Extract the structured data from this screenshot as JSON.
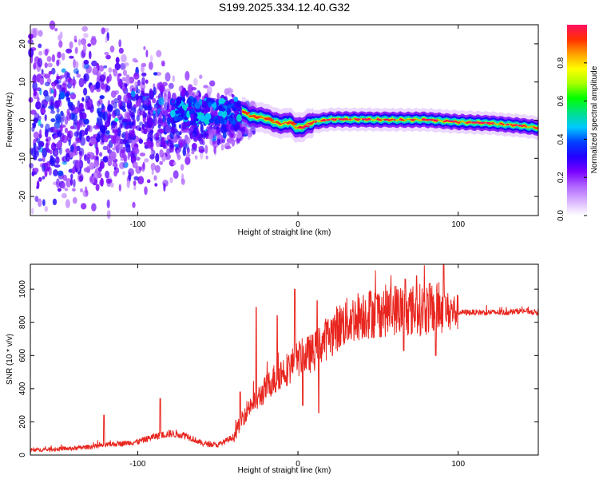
{
  "title": "S199.2025.334.12.40.G32",
  "chart_data": [
    {
      "type": "heatmap",
      "xlabel": "Height of straight line (km)",
      "ylabel": "Frequency (Hz)",
      "xlim": [
        -167,
        150
      ],
      "ylim": [
        -25,
        25
      ],
      "xticks": [
        -100,
        0,
        100
      ],
      "yticks": [
        -20,
        -10,
        0,
        10,
        20
      ],
      "xtick_labels": [
        "-100",
        "0",
        "100"
      ],
      "ytick_labels": [
        "-20",
        "-10",
        "0",
        "10",
        "20"
      ],
      "colorbar": {
        "label": "Normalized spectral amplitude",
        "range": [
          0,
          1
        ],
        "ticks": [
          0.0,
          0.2,
          0.4,
          0.6,
          0.8
        ],
        "tick_labels": [
          "0.0",
          "0.2",
          "0.4",
          "0.6",
          "0.8"
        ],
        "colors": [
          "#ffffff",
          "#d9b3ff",
          "#b066ff",
          "#7a00ff",
          "#2400ff",
          "#0040ff",
          "#00c8ff",
          "#00e08a",
          "#00ff00",
          "#a8ff00",
          "#ffff00",
          "#ffa000",
          "#ff3000",
          "#ff1060"
        ]
      },
      "trace_center_hz": [
        [
          -35,
          2.5
        ],
        [
          -30,
          1.0
        ],
        [
          -25,
          0.8
        ],
        [
          -20,
          0.5
        ],
        [
          -15,
          -0.5
        ],
        [
          -10,
          -1.0
        ],
        [
          -5,
          -0.5
        ],
        [
          -2,
          -1.8
        ],
        [
          2,
          -2.0
        ],
        [
          6,
          -1.0
        ],
        [
          12,
          -0.3
        ],
        [
          20,
          0.2
        ],
        [
          40,
          0.2
        ],
        [
          60,
          0.1
        ],
        [
          80,
          0.1
        ],
        [
          100,
          -0.5
        ],
        [
          120,
          -0.8
        ],
        [
          140,
          -1.5
        ],
        [
          150,
          -2.0
        ]
      ],
      "scatter_extent": {
        "x": [
          -167,
          -30
        ],
        "note": "diffuse low-amplitude spectral energy"
      }
    },
    {
      "type": "line",
      "xlabel": "Height of straight line (km)",
      "ylabel": "SNR (10 * v/v)",
      "xlim": [
        -167,
        150
      ],
      "ylim": [
        0,
        1150
      ],
      "xticks": [
        -100,
        0,
        100
      ],
      "yticks": [
        0,
        200,
        400,
        600,
        800,
        1000
      ],
      "xtick_labels": [
        "-100",
        "0",
        "100"
      ],
      "ytick_labels": [
        "0",
        "200",
        "400",
        "600",
        "800",
        "1000"
      ],
      "color": "#e8261f",
      "series": [
        {
          "name": "SNR",
          "x": [
            -167,
            -140,
            -120,
            -100,
            -90,
            -80,
            -70,
            -60,
            -50,
            -40,
            -35,
            -30,
            -25,
            -20,
            -15,
            -10,
            -5,
            0,
            5,
            10,
            15,
            20,
            25,
            30,
            40,
            50,
            60,
            70,
            80,
            90,
            100,
            110,
            120,
            130,
            140,
            150
          ],
          "y": [
            30,
            40,
            60,
            80,
            110,
            130,
            120,
            70,
            60,
            110,
            220,
            300,
            340,
            400,
            460,
            500,
            530,
            580,
            600,
            620,
            680,
            720,
            770,
            800,
            850,
            860,
            880,
            870,
            880,
            880,
            860,
            860,
            860,
            860,
            870,
            860
          ]
        }
      ],
      "spikes": [
        [
          -121,
          240
        ],
        [
          -86,
          340
        ],
        [
          -36,
          380
        ],
        [
          -26,
          890
        ],
        [
          -13,
          840
        ],
        [
          -2,
          1000
        ],
        [
          3,
          300
        ],
        [
          12,
          930
        ],
        [
          18,
          800
        ],
        [
          45,
          990
        ],
        [
          54,
          900
        ],
        [
          67,
          1060
        ],
        [
          74,
          1080
        ],
        [
          82,
          1030
        ],
        [
          86,
          1100
        ],
        [
          91,
          1150
        ]
      ],
      "dips": [
        [
          -14,
          380
        ],
        [
          13,
          255
        ],
        [
          66,
          630
        ],
        [
          86,
          600
        ]
      ]
    }
  ]
}
